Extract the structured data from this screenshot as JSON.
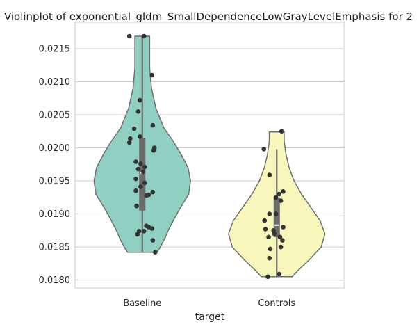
{
  "chart_data": {
    "type": "violin",
    "title": "Violinplot of exponential_gldm_SmallDependenceLowGrayLevelEmphasis for 2",
    "xlabel": "target",
    "ylabel": "",
    "categories": [
      "Baseline",
      "Controls"
    ],
    "ylim": [
      0.01788,
      0.0219
    ],
    "yticks": [
      0.018,
      0.0185,
      0.019,
      0.0195,
      0.02,
      0.0205,
      0.021,
      0.0215
    ],
    "ytick_labels": [
      "0.0180",
      "0.0185",
      "0.0190",
      "0.0195",
      "0.0200",
      "0.0205",
      "0.0210",
      "0.0215"
    ],
    "grid": "y",
    "colors": {
      "Baseline": "#8fd0c2",
      "Controls": "#f7f7bb",
      "outline": "#6e6e6e",
      "points": "#333333"
    },
    "violins": [
      {
        "category": "Baseline",
        "profile": [
          [
            0.01842,
            0.24
          ],
          [
            0.0185,
            0.29
          ],
          [
            0.0186,
            0.35
          ],
          [
            0.01875,
            0.42
          ],
          [
            0.0189,
            0.5
          ],
          [
            0.0191,
            0.62
          ],
          [
            0.0193,
            0.75
          ],
          [
            0.0195,
            0.78
          ],
          [
            0.0197,
            0.74
          ],
          [
            0.0199,
            0.63
          ],
          [
            0.0201,
            0.5
          ],
          [
            0.0203,
            0.35
          ],
          [
            0.0206,
            0.22
          ],
          [
            0.0209,
            0.15
          ],
          [
            0.0212,
            0.12
          ],
          [
            0.0215,
            0.12
          ],
          [
            0.02169,
            0.12
          ]
        ],
        "box": {
          "q1": 0.01905,
          "median": 0.01962,
          "q3": 0.02015,
          "whisker_low": 0.01842,
          "whisker_high": 0.02169
        }
      },
      {
        "category": "Controls",
        "profile": [
          [
            0.01805,
            0.25
          ],
          [
            0.01815,
            0.35
          ],
          [
            0.0183,
            0.52
          ],
          [
            0.0185,
            0.72
          ],
          [
            0.0187,
            0.78
          ],
          [
            0.0189,
            0.7
          ],
          [
            0.0191,
            0.55
          ],
          [
            0.0193,
            0.4
          ],
          [
            0.0195,
            0.28
          ],
          [
            0.0197,
            0.2
          ],
          [
            0.0199,
            0.15
          ],
          [
            0.0201,
            0.12
          ],
          [
            0.02024,
            0.12
          ]
        ],
        "box": {
          "q1": 0.01865,
          "median": 0.01883,
          "q3": 0.01925,
          "whisker_low": 0.01805,
          "whisker_high": 0.01998
        }
      }
    ],
    "points": [
      {
        "category": "Baseline",
        "y": [
          0.02169,
          0.02169,
          0.0211,
          0.02072,
          0.02055,
          0.02034,
          0.02029,
          0.02017,
          0.02014,
          0.02008,
          0.02,
          0.01996,
          0.01979,
          0.01976,
          0.01971,
          0.01968,
          0.01964,
          0.01953,
          0.01947,
          0.01941,
          0.01935,
          0.01933,
          0.01929,
          0.01928,
          0.01912,
          0.01882,
          0.0188,
          0.01878,
          0.01874,
          0.01874,
          0.01869,
          0.0186,
          0.01842
        ],
        "jitter": [
          -0.16,
          0.02,
          0.12,
          -0.03,
          -0.05,
          0.13,
          -0.1,
          -0.03,
          -0.15,
          -0.16,
          0.15,
          0.14,
          -0.08,
          -0.02,
          0.03,
          -0.05,
          0.01,
          -0.08,
          0.03,
          -0.02,
          -0.08,
          0.13,
          0.08,
          0.05,
          -0.07,
          0.05,
          0.08,
          0.12,
          -0.04,
          0.02,
          -0.06,
          0.13,
          0.16
        ]
      },
      {
        "category": "Controls",
        "y": [
          0.02025,
          0.01998,
          0.01959,
          0.01934,
          0.0193,
          0.01925,
          0.0192,
          0.019,
          0.019,
          0.0189,
          0.0188,
          0.01877,
          0.01875,
          0.0187,
          0.01865,
          0.01865,
          0.0186,
          0.0185,
          0.01847,
          0.01833,
          0.01809,
          0.01805
        ],
        "jitter": [
          0.06,
          -0.16,
          -0.09,
          0.08,
          0.03,
          -0.01,
          0.05,
          -0.09,
          -0.01,
          -0.15,
          0.08,
          -0.14,
          -0.04,
          -0.03,
          -0.1,
          0.04,
          0.07,
          0.05,
          -0.08,
          -0.09,
          0.03,
          -0.11
        ]
      }
    ]
  }
}
